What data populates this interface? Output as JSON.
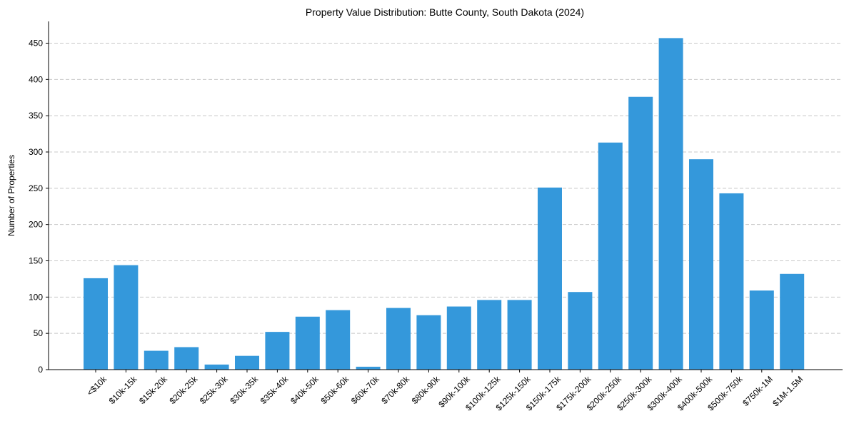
{
  "chart_data": {
    "type": "bar",
    "title": "Property Value Distribution: Butte County, South Dakota (2024)",
    "xlabel": "",
    "ylabel": "Number of Properties",
    "ylim": [
      0,
      480
    ],
    "yticks": [
      0,
      50,
      100,
      150,
      200,
      250,
      300,
      350,
      400,
      450
    ],
    "grid": "y-dashed",
    "bar_color": "#3498db",
    "categories": [
      "<$10k",
      "$10k-15k",
      "$15k-20k",
      "$20k-25k",
      "$25k-30k",
      "$30k-35k",
      "$35k-40k",
      "$40k-50k",
      "$50k-60k",
      "$60k-70k",
      "$70k-80k",
      "$80k-90k",
      "$90k-100k",
      "$100k-125k",
      "$125k-150k",
      "$150k-175k",
      "$175k-200k",
      "$200k-250k",
      "$250k-300k",
      "$300k-400k",
      "$400k-500k",
      "$500k-750k",
      "$750k-1M",
      "$1M-1.5M"
    ],
    "values": [
      126,
      144,
      26,
      31,
      7,
      19,
      52,
      73,
      82,
      4,
      85,
      75,
      87,
      96,
      96,
      251,
      107,
      313,
      376,
      457,
      290,
      243,
      109,
      132
    ]
  }
}
